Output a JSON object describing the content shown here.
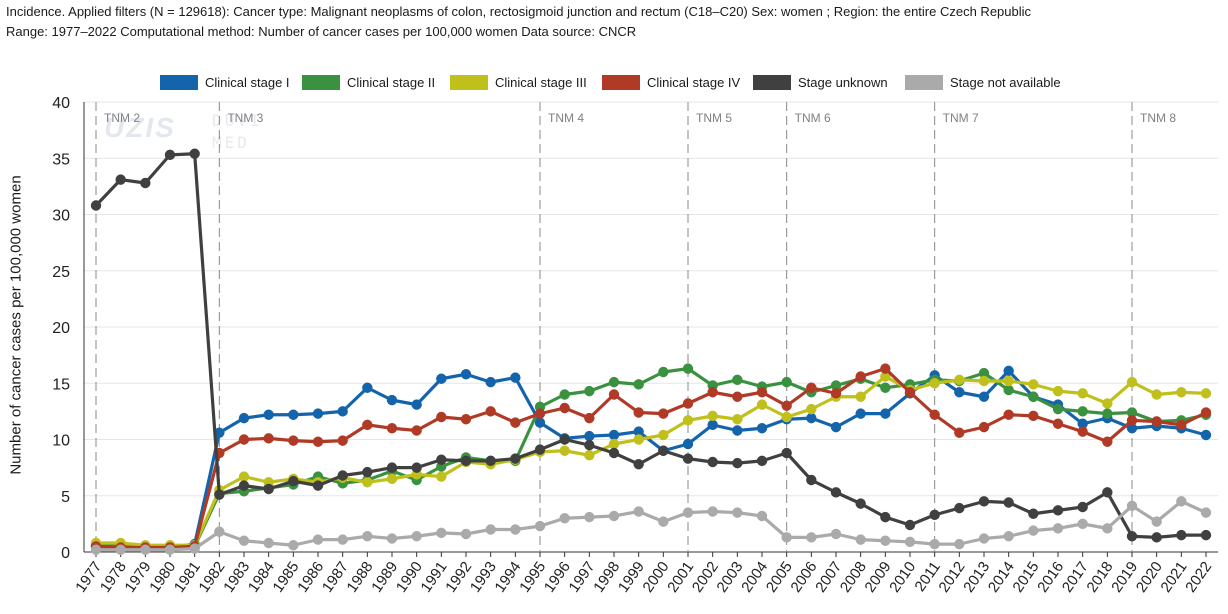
{
  "header": {
    "line1": "Incidence. Applied filters (N = 129618): Cancer type: Malignant neoplasms of colon, rectosigmoid junction and rectum (C18–C20) Sex: women ; Region: the entire Czech Republic",
    "line2": "Range: 1977–2022 Computational method: Number of cancer cases per 100,000 women Data source: CNCR"
  },
  "watermark": {
    "logo": "ÚZIS",
    "text1": "DUVI",
    "text2": "MED"
  },
  "chart_data": {
    "type": "line",
    "ylabel": "Number of cancer cases per 100,000 women",
    "xlabel": "",
    "ylim": [
      0,
      40
    ],
    "yticks": [
      0,
      5,
      10,
      15,
      20,
      25,
      30,
      35,
      40
    ],
    "grid": true,
    "legend_position": "top",
    "x": [
      1977,
      1978,
      1979,
      1980,
      1981,
      1982,
      1983,
      1984,
      1985,
      1986,
      1987,
      1988,
      1989,
      1990,
      1991,
      1992,
      1993,
      1994,
      1995,
      1996,
      1997,
      1998,
      1999,
      2000,
      2001,
      2002,
      2003,
      2004,
      2005,
      2006,
      2007,
      2008,
      2009,
      2010,
      2011,
      2012,
      2013,
      2014,
      2015,
      2016,
      2017,
      2018,
      2019,
      2020,
      2021,
      2022
    ],
    "annotations": [
      {
        "label": "TNM 2",
        "year": 1977
      },
      {
        "label": "TNM 3",
        "year": 1982
      },
      {
        "label": "TNM 4",
        "year": 1995
      },
      {
        "label": "TNM 5",
        "year": 2001
      },
      {
        "label": "TNM 6",
        "year": 2005
      },
      {
        "label": "TNM 7",
        "year": 2011
      },
      {
        "label": "TNM 8",
        "year": 2019
      }
    ],
    "series": [
      {
        "name": "Clinical stage I",
        "color": "#1464ac",
        "values": [
          0.5,
          0.4,
          0.3,
          0.4,
          0.7,
          10.6,
          11.9,
          12.2,
          12.2,
          12.3,
          12.5,
          14.6,
          13.5,
          13.1,
          15.4,
          15.8,
          15.1,
          15.5,
          11.5,
          10.1,
          10.3,
          10.4,
          10.7,
          9.0,
          9.6,
          11.3,
          10.8,
          11.0,
          11.8,
          11.9,
          11.1,
          12.3,
          12.3,
          14.1,
          15.7,
          14.2,
          13.8,
          16.1,
          13.8,
          13.1,
          11.4,
          11.9,
          11.0,
          11.2,
          11.0,
          10.4
        ]
      },
      {
        "name": "Clinical stage II",
        "color": "#3a9140",
        "values": [
          0.6,
          0.5,
          0.4,
          0.4,
          0.5,
          5.2,
          5.4,
          5.7,
          6.0,
          6.7,
          6.1,
          6.4,
          7.2,
          6.4,
          7.6,
          8.4,
          8.1,
          8.1,
          12.9,
          14.0,
          14.3,
          15.1,
          14.9,
          16.0,
          16.3,
          14.8,
          15.3,
          14.7,
          15.1,
          14.2,
          14.8,
          15.4,
          14.6,
          14.9,
          15.3,
          15.2,
          15.9,
          14.4,
          13.8,
          12.7,
          12.5,
          12.3,
          12.4,
          11.6,
          11.7,
          12.2
        ]
      },
      {
        "name": "Clinical stage III",
        "color": "#bfc01c",
        "values": [
          0.8,
          0.8,
          0.6,
          0.6,
          0.6,
          5.5,
          6.7,
          6.2,
          6.5,
          6.2,
          6.6,
          6.2,
          6.5,
          6.9,
          6.7,
          8.0,
          7.8,
          8.2,
          8.9,
          9.0,
          8.6,
          9.6,
          10.0,
          10.4,
          11.7,
          12.1,
          11.8,
          13.1,
          12.0,
          12.7,
          13.8,
          13.8,
          15.6,
          14.4,
          15.0,
          15.3,
          15.2,
          15.2,
          14.9,
          14.3,
          14.1,
          13.2,
          15.1,
          14.0,
          14.2,
          14.1
        ]
      },
      {
        "name": "Clinical stage IV",
        "color": "#b03a26",
        "values": [
          0.5,
          0.4,
          0.4,
          0.4,
          0.5,
          8.8,
          10.0,
          10.1,
          9.9,
          9.8,
          9.9,
          11.3,
          11.0,
          10.8,
          12.0,
          11.8,
          12.5,
          11.5,
          12.3,
          12.8,
          11.9,
          14.0,
          12.4,
          12.3,
          13.2,
          14.2,
          13.8,
          14.2,
          13.0,
          14.6,
          14.1,
          15.6,
          16.3,
          14.2,
          12.2,
          10.6,
          11.1,
          12.2,
          12.1,
          11.4,
          10.7,
          9.8,
          11.7,
          11.6,
          11.3,
          12.4
        ]
      },
      {
        "name": "Stage unknown",
        "color": "#404040",
        "values": [
          30.8,
          33.1,
          32.8,
          35.3,
          35.4,
          5.1,
          5.9,
          5.6,
          6.3,
          5.9,
          6.8,
          7.1,
          7.5,
          7.5,
          8.2,
          8.1,
          8.1,
          8.3,
          9.1,
          10.0,
          9.5,
          8.8,
          7.8,
          9.0,
          8.3,
          8.0,
          7.9,
          8.1,
          8.8,
          6.4,
          5.3,
          4.3,
          3.1,
          2.4,
          3.3,
          3.9,
          4.5,
          4.4,
          3.4,
          3.7,
          4.0,
          5.3,
          1.4,
          1.3,
          1.5,
          1.5
        ]
      },
      {
        "name": "Stage not available",
        "color": "#aaaaaa",
        "values": [
          0.2,
          0.2,
          0.2,
          0.2,
          0.3,
          1.8,
          1.0,
          0.8,
          0.6,
          1.1,
          1.1,
          1.4,
          1.2,
          1.4,
          1.7,
          1.6,
          2.0,
          2.0,
          2.3,
          3.0,
          3.1,
          3.2,
          3.6,
          2.7,
          3.5,
          3.6,
          3.5,
          3.2,
          1.3,
          1.3,
          1.6,
          1.1,
          1.0,
          0.9,
          0.7,
          0.7,
          1.2,
          1.4,
          1.9,
          2.1,
          2.5,
          2.1,
          4.1,
          2.7,
          4.5,
          3.5
        ]
      }
    ]
  }
}
